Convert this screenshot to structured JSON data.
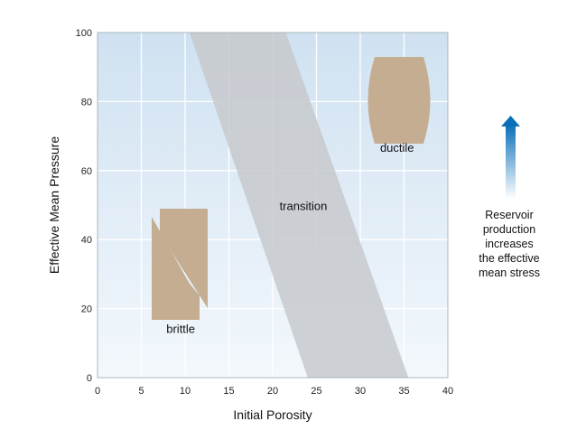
{
  "chart_data": {
    "type": "area",
    "xlabel": "Initial Porosity",
    "ylabel": "Effective Mean Pressure",
    "xlim": [
      0,
      40
    ],
    "ylim": [
      0,
      100
    ],
    "x_ticks": [
      0,
      5,
      10,
      15,
      20,
      25,
      30,
      35,
      40
    ],
    "y_ticks": [
      0,
      20,
      40,
      60,
      80,
      100
    ],
    "grid": true,
    "regions": [
      {
        "name": "transition",
        "label": "transition",
        "polygon": [
          [
            10.5,
            100
          ],
          [
            21.5,
            100
          ],
          [
            35.5,
            0
          ],
          [
            24,
            0
          ]
        ]
      }
    ],
    "annotations": [
      {
        "text": "brittle",
        "x": 9.5,
        "y": 13
      },
      {
        "text": "ductile",
        "x": 34.2,
        "y": 65.5
      },
      {
        "text": "transition",
        "x": 23.5,
        "y": 48.5
      }
    ],
    "side_note": {
      "arrow": "up",
      "lines": [
        "Reservoir",
        "production",
        "increases",
        "the effective",
        "mean stress"
      ]
    },
    "colors": {
      "background_top": "#cfe1f1",
      "background_bottom": "#f3f8fc",
      "grid": "#ffffff",
      "transition_band": "#c7c9cc",
      "sample": "#c4ad91",
      "arrow_top": "#0a6fb8",
      "arrow_bottom": "#ffffff"
    }
  }
}
